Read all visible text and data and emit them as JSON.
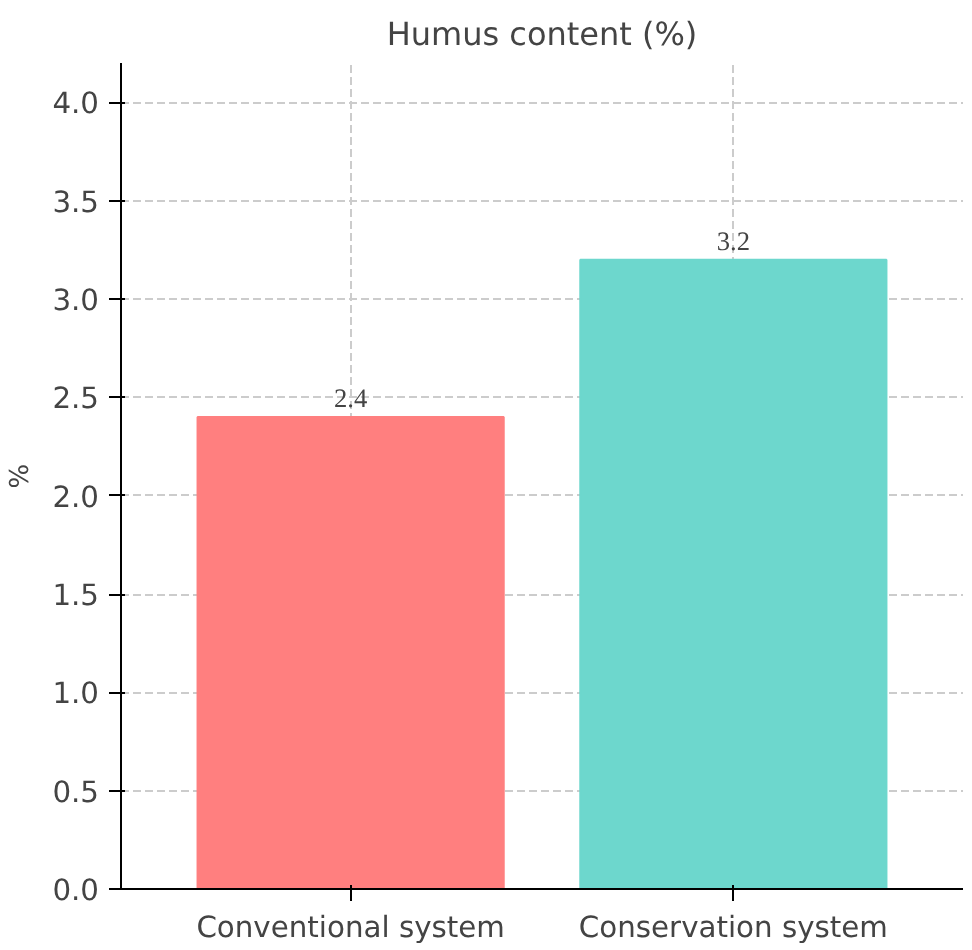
{
  "chart_data": {
    "type": "bar",
    "title": "Humus content (%)",
    "ylabel": "%",
    "categories": [
      "Conventional system",
      "Conservation system"
    ],
    "values": [
      2.4,
      3.2
    ],
    "colors": [
      "#ff7f7f",
      "#6dd7cd"
    ],
    "ylim": [
      0,
      4.2
    ],
    "yticks": [
      {
        "value": 0,
        "label": "0.0"
      },
      0.5,
      {
        "value": 1,
        "label": "1.0"
      },
      1.5,
      {
        "value": 2,
        "label": "2.0"
      },
      2.5,
      {
        "value": 3,
        "label": "3.0"
      },
      3.5,
      {
        "value": 4,
        "label": "4.0"
      }
    ],
    "grid": true,
    "data_labels": true
  }
}
